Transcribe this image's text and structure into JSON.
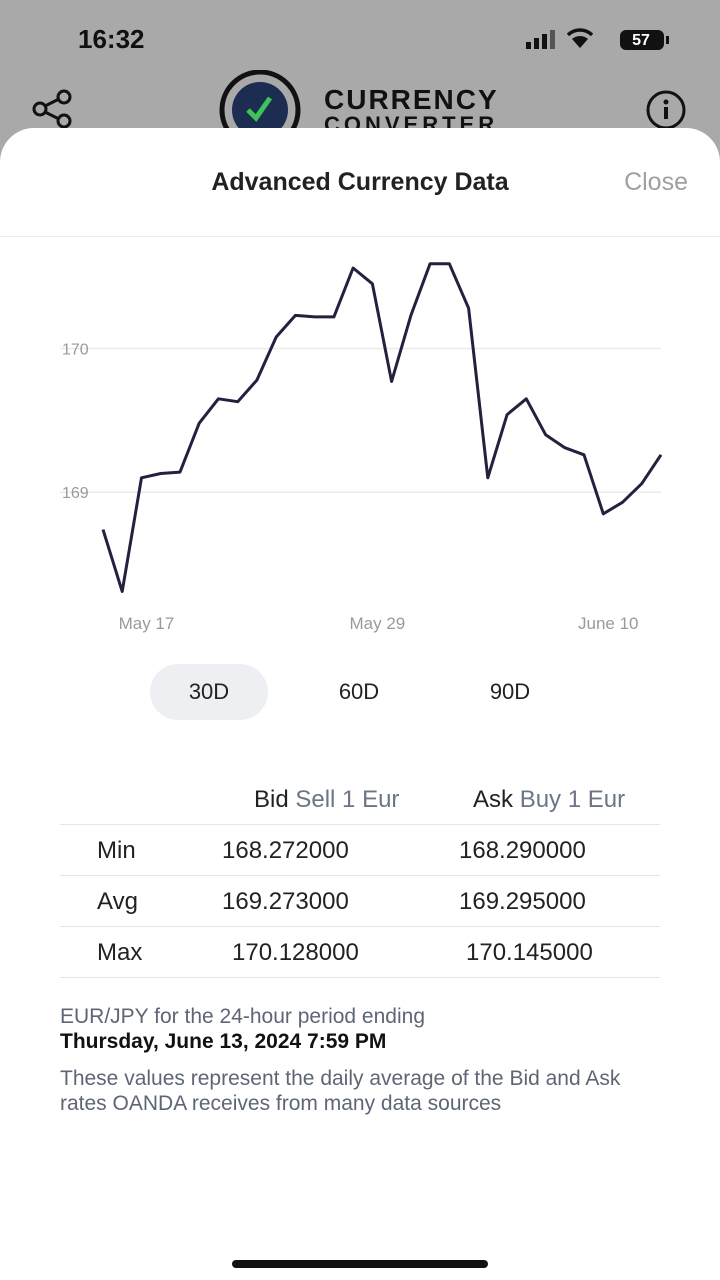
{
  "status_bar": {
    "time": "16:32",
    "battery": "57"
  },
  "app_header": {
    "logo_line1": "CURRENCY",
    "logo_line2": "CONVERTER"
  },
  "modal": {
    "title": "Advanced Currency Data",
    "close": "Close"
  },
  "chart_data": {
    "type": "line",
    "categories": [
      null,
      null,
      "May 17",
      null,
      null,
      null,
      null,
      null,
      null,
      null,
      null,
      null,
      null,
      null,
      "May 29",
      null,
      null,
      null,
      null,
      null,
      null,
      null,
      null,
      null,
      null,
      null,
      "June 10",
      null,
      null,
      null
    ],
    "series": [
      {
        "name": "EUR/JPY",
        "color": "#24203f",
        "values": [
          168.74,
          168.31,
          169.1,
          169.13,
          169.14,
          169.48,
          169.65,
          169.63,
          169.78,
          170.08,
          170.23,
          170.22,
          170.22,
          170.56,
          170.45,
          169.77,
          170.23,
          170.59,
          170.59,
          170.28,
          169.1,
          169.54,
          169.65,
          169.4,
          169.31,
          169.26,
          168.85,
          168.93,
          169.06,
          169.26
        ]
      }
    ],
    "ylim": [
      168.25,
      170.72
    ],
    "yticks": [
      169,
      170
    ],
    "grid": true
  },
  "tabs": [
    "30D",
    "60D",
    "90D"
  ],
  "table": {
    "header": [
      [
        "Bid",
        "Sell 1 Eur"
      ],
      [
        "Ask",
        "Buy 1 Eur"
      ]
    ],
    "rows": [
      [
        "Min",
        "168.272000",
        "168.290000"
      ],
      [
        "Avg",
        "169.273000",
        "169.295000"
      ],
      [
        "Max",
        "170.128000",
        "170.145000"
      ]
    ]
  },
  "footer": {
    "period": "EUR/JPY for the 24-hour period ending",
    "date": "Thursday, June 13, 2024 7:59 PM",
    "note": "These values represent the daily average of the Bid and Ask rates OANDA receives from many data sources"
  }
}
